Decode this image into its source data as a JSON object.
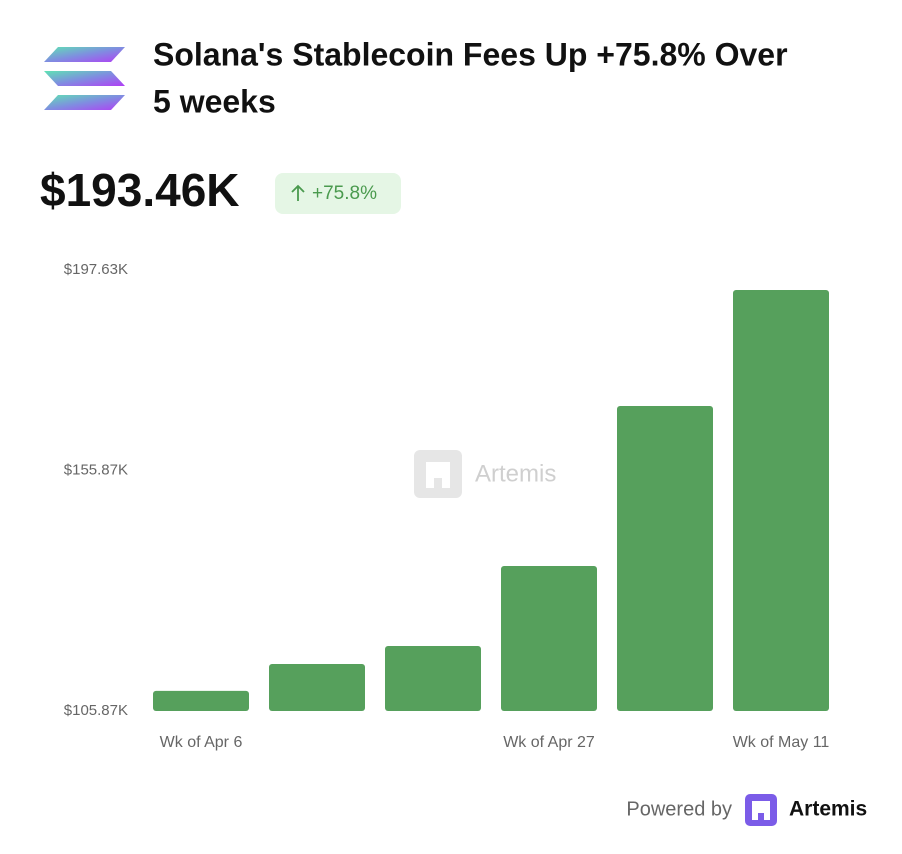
{
  "header": {
    "title_lines": [
      "Solana's Stablecoin Fees Up +75.8% Over",
      "5 weeks"
    ],
    "value": "$193.46K",
    "change": "+75.8%"
  },
  "chart_data": {
    "type": "bar",
    "categories": [
      "Wk of Apr 6",
      null,
      null,
      "Wk of Apr 27",
      null,
      "Wk of May 11"
    ],
    "values": [
      110050,
      115650,
      119400,
      136040,
      169340,
      193460
    ],
    "color": "#56a05c",
    "ylim": [
      105870,
      197630
    ],
    "yticks": [
      {
        "value": 105870,
        "label": "$105.87K"
      },
      {
        "value": 155870,
        "label": "$155.87K"
      },
      {
        "value": 197630,
        "label": "$197.63K"
      }
    ],
    "grid": false,
    "watermark": "Artemis"
  },
  "footer": {
    "powered_by": "Powered by",
    "brand": "Artemis"
  }
}
